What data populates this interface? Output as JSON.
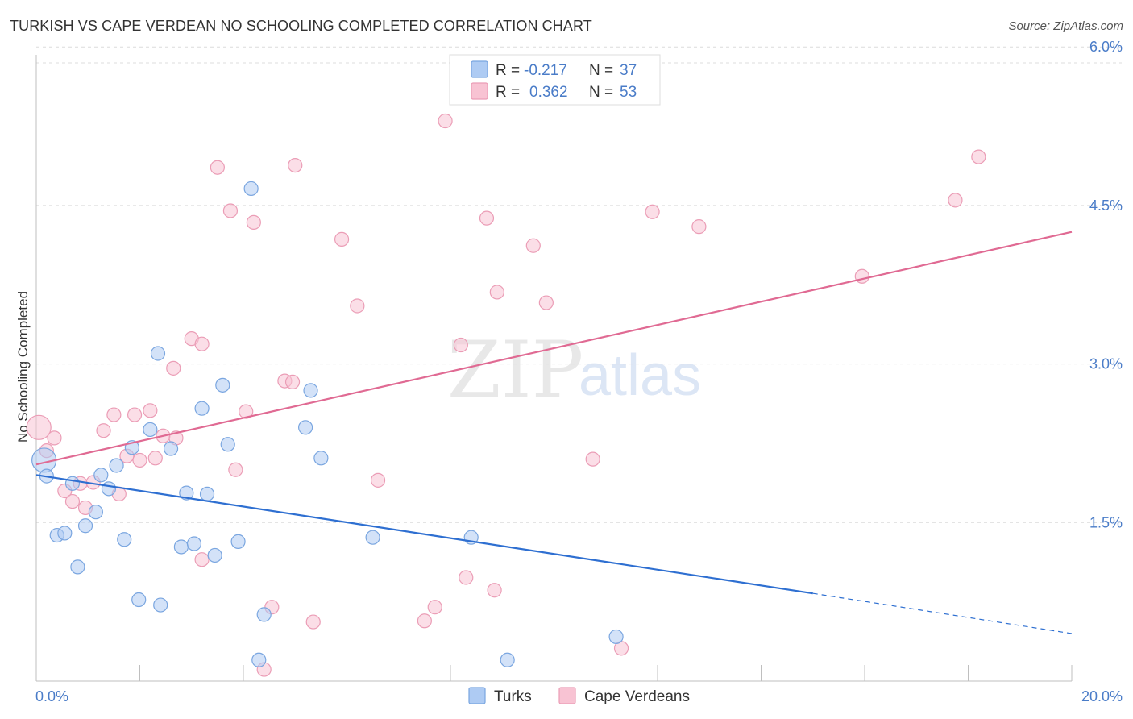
{
  "header": {
    "title": "TURKISH VS CAPE VERDEAN NO SCHOOLING COMPLETED CORRELATION CHART",
    "source": "Source: ZipAtlas.com"
  },
  "watermark": {
    "part1": "ZIP",
    "part2": "atlas"
  },
  "colors": {
    "turks_fill": "#aecbf3",
    "turks_stroke": "#7aa6e0",
    "turks_line": "#2e6fd1",
    "cape_fill": "#f8c3d3",
    "cape_stroke": "#eb9db6",
    "cape_line": "#e06a93",
    "label_blue": "#4a7cc8"
  },
  "stats_legend": [
    {
      "r_label": "R =",
      "r_value": "-0.217",
      "n_label": "N =",
      "n_value": "37",
      "series": "turks"
    },
    {
      "r_label": "R =",
      "r_value": "0.362",
      "n_label": "N =",
      "n_value": "53",
      "series": "cape"
    }
  ],
  "chart_data": {
    "type": "scatter",
    "title": "TURKISH VS CAPE VERDEAN NO SCHOOLING COMPLETED CORRELATION CHART",
    "xlabel": "",
    "ylabel": "No Schooling Completed",
    "xlim": [
      0,
      20
    ],
    "ylim": [
      0,
      6.2
    ],
    "x_tick_labels": [
      {
        "value": 0,
        "label": "0.0%"
      },
      {
        "value": 20,
        "label": "20.0%"
      }
    ],
    "y_tick_labels": [
      {
        "value": 1.5,
        "label": "1.5%"
      },
      {
        "value": 3.0,
        "label": "3.0%"
      },
      {
        "value": 4.5,
        "label": "4.5%"
      },
      {
        "value": 6.0,
        "label": "6.0%"
      }
    ],
    "grid": true,
    "legend_position": "bottom-center",
    "series": [
      {
        "name": "Turks",
        "key": "turks",
        "trend": {
          "x0": 0,
          "y0": 1.95,
          "x1": 15.0,
          "y1": 0.83,
          "dash_to_x": 20,
          "dash_to_y": 0.45
        },
        "points": [
          [
            0.15,
            2.09
          ],
          [
            0.2,
            1.94
          ],
          [
            0.4,
            1.38
          ],
          [
            0.55,
            1.4
          ],
          [
            0.7,
            1.87
          ],
          [
            0.8,
            1.08
          ],
          [
            0.95,
            1.47
          ],
          [
            1.15,
            1.6
          ],
          [
            1.25,
            1.95
          ],
          [
            1.4,
            1.82
          ],
          [
            1.55,
            2.04
          ],
          [
            1.7,
            1.34
          ],
          [
            1.85,
            2.21
          ],
          [
            1.98,
            0.77
          ],
          [
            2.2,
            2.38
          ],
          [
            2.35,
            3.1
          ],
          [
            2.4,
            0.72
          ],
          [
            2.6,
            2.2
          ],
          [
            2.8,
            1.27
          ],
          [
            2.9,
            1.78
          ],
          [
            3.05,
            1.3
          ],
          [
            3.2,
            2.58
          ],
          [
            3.3,
            1.77
          ],
          [
            3.45,
            1.19
          ],
          [
            3.6,
            2.8
          ],
          [
            3.7,
            2.24
          ],
          [
            3.9,
            1.32
          ],
          [
            4.15,
            4.66
          ],
          [
            4.3,
            0.2
          ],
          [
            4.4,
            0.63
          ],
          [
            5.2,
            2.4
          ],
          [
            5.3,
            2.75
          ],
          [
            5.5,
            2.11
          ],
          [
            6.5,
            1.36
          ],
          [
            8.4,
            1.36
          ],
          [
            9.1,
            0.2
          ],
          [
            11.2,
            0.42
          ]
        ]
      },
      {
        "name": "Cape Verdeans",
        "key": "cape",
        "trend": {
          "x0": 0,
          "y0": 2.05,
          "x1": 20,
          "y1": 4.25
        },
        "points": [
          [
            0.05,
            2.4
          ],
          [
            0.2,
            2.18
          ],
          [
            0.35,
            2.3
          ],
          [
            0.55,
            1.8
          ],
          [
            0.7,
            1.7
          ],
          [
            0.85,
            1.87
          ],
          [
            0.95,
            1.64
          ],
          [
            1.1,
            1.88
          ],
          [
            1.3,
            2.37
          ],
          [
            1.5,
            2.52
          ],
          [
            1.6,
            1.77
          ],
          [
            1.75,
            2.13
          ],
          [
            1.9,
            2.52
          ],
          [
            2.0,
            2.09
          ],
          [
            2.2,
            2.56
          ],
          [
            2.3,
            2.11
          ],
          [
            2.45,
            2.32
          ],
          [
            2.65,
            2.96
          ],
          [
            2.7,
            2.3
          ],
          [
            3.0,
            3.24
          ],
          [
            3.2,
            3.19
          ],
          [
            3.2,
            1.15
          ],
          [
            3.5,
            4.86
          ],
          [
            3.75,
            4.45
          ],
          [
            3.85,
            2.0
          ],
          [
            4.05,
            2.55
          ],
          [
            4.2,
            4.34
          ],
          [
            4.4,
            0.11
          ],
          [
            4.55,
            0.7
          ],
          [
            4.8,
            2.84
          ],
          [
            4.95,
            2.83
          ],
          [
            5.0,
            4.88
          ],
          [
            5.35,
            0.56
          ],
          [
            5.9,
            4.18
          ],
          [
            6.2,
            3.55
          ],
          [
            6.6,
            1.9
          ],
          [
            7.5,
            0.57
          ],
          [
            7.7,
            0.7
          ],
          [
            7.9,
            5.3
          ],
          [
            8.2,
            3.18
          ],
          [
            8.3,
            0.98
          ],
          [
            8.7,
            4.38
          ],
          [
            8.85,
            0.86
          ],
          [
            8.9,
            3.68
          ],
          [
            9.6,
            4.12
          ],
          [
            9.85,
            3.58
          ],
          [
            10.75,
            2.1
          ],
          [
            11.3,
            0.31
          ],
          [
            11.9,
            4.44
          ],
          [
            12.8,
            4.3
          ],
          [
            15.95,
            3.83
          ],
          [
            17.75,
            4.55
          ],
          [
            18.2,
            4.96
          ]
        ]
      }
    ]
  },
  "bottom_legend": [
    {
      "label": "Turks",
      "series": "turks"
    },
    {
      "label": "Cape Verdeans",
      "series": "cape"
    }
  ]
}
